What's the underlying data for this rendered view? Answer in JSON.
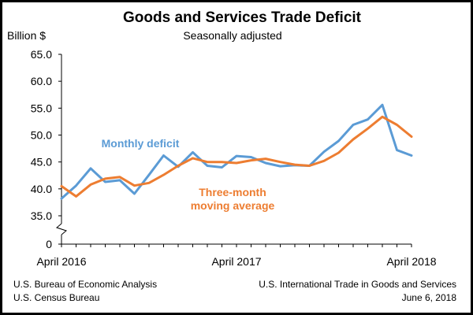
{
  "chart_data": {
    "type": "line",
    "title": "Goods and Services Trade Deficit",
    "subtitle": "Seasonally adjusted",
    "ylabel": "Billion $",
    "ylim": [
      35,
      65
    ],
    "yticks": [
      "65.0",
      "60.0",
      "55.0",
      "50.0",
      "45.0",
      "40.0",
      "35.0",
      "0"
    ],
    "axis_break": true,
    "x_tick_labels": [
      "April 2016",
      "April 2017",
      "April 2018"
    ],
    "x": [
      "Apr 2016",
      "May 2016",
      "Jun 2016",
      "Jul 2016",
      "Aug 2016",
      "Sep 2016",
      "Oct 2016",
      "Nov 2016",
      "Dec 2016",
      "Jan 2017",
      "Feb 2017",
      "Mar 2017",
      "Apr 2017",
      "May 2017",
      "Jun 2017",
      "Jul 2017",
      "Aug 2017",
      "Sep 2017",
      "Oct 2017",
      "Nov 2017",
      "Dec 2017",
      "Jan 2018",
      "Feb 2018",
      "Mar 2018",
      "Apr 2018"
    ],
    "series": [
      {
        "name": "Monthly deficit",
        "color": "#5b9bd5",
        "values": [
          38.2,
          40.6,
          43.8,
          41.3,
          41.6,
          39.1,
          42.6,
          46.2,
          44.1,
          46.8,
          44.3,
          44.0,
          46.1,
          45.9,
          44.8,
          44.2,
          44.4,
          44.3,
          46.9,
          48.9,
          51.9,
          52.9,
          55.6,
          47.2,
          46.2
        ]
      },
      {
        "name": "Three-month moving average",
        "color": "#ed7d31",
        "values": [
          40.5,
          38.6,
          40.8,
          41.9,
          42.2,
          40.6,
          41.1,
          42.6,
          44.3,
          45.7,
          45.0,
          45.0,
          44.8,
          45.3,
          45.6,
          45.0,
          44.5,
          44.3,
          45.2,
          46.7,
          49.2,
          51.2,
          53.4,
          51.9,
          49.7
        ]
      }
    ],
    "series_labels": {
      "monthly": "Monthly deficit",
      "moving_line1": "Three-month",
      "moving_line2": "moving average"
    }
  },
  "footer": {
    "source_line1": "U.S. Bureau of Economic Analysis",
    "source_line2": "U.S. Census Bureau",
    "release_line1": "U.S. International Trade in Goods and Services",
    "release_line2": "June 6, 2018"
  }
}
